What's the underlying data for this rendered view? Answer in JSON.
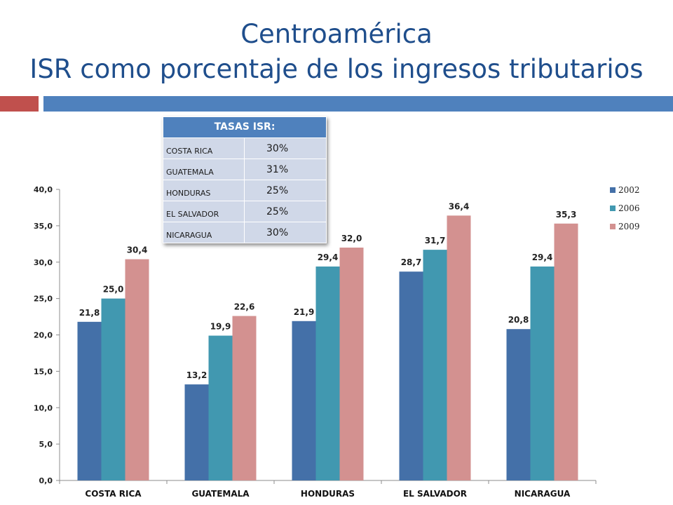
{
  "slide": {
    "title_line1": "Centroamérica",
    "title_line2": "ISR como porcentaje de los ingresos tributarios"
  },
  "rates_table": {
    "header": "TASAS ISR:",
    "rows": [
      {
        "country": "COSTA RICA",
        "rate": "30%"
      },
      {
        "country": "GUATEMALA",
        "rate": "31%"
      },
      {
        "country": "HONDURAS",
        "rate": "25%"
      },
      {
        "country": "EL SALVADOR",
        "rate": "25%"
      },
      {
        "country": "NICARAGUA",
        "rate": "30%"
      }
    ]
  },
  "colors": {
    "title": "#1f4e8c",
    "accent_red": "#c0504d",
    "accent_blue": "#4f81bd",
    "table_header": "#4f81bd",
    "table_cell": "#d0d8e8"
  },
  "chart_data": {
    "type": "bar",
    "title": "",
    "xlabel": "",
    "ylabel": "",
    "categories": [
      "COSTA RICA",
      "GUATEMALA",
      "HONDURAS",
      "EL SALVADOR",
      "NICARAGUA"
    ],
    "series": [
      {
        "name": "2002",
        "color": "#4470a8",
        "values": [
          21.8,
          13.2,
          21.9,
          28.7,
          20.8
        ],
        "labels": [
          "21,8",
          "13,2",
          "21,9",
          "28,7",
          "20,8"
        ]
      },
      {
        "name": "2006",
        "color": "#4198b0",
        "values": [
          25.0,
          19.9,
          29.4,
          31.7,
          29.4
        ],
        "labels": [
          "25,0",
          "19,9",
          "29,4",
          "31,7",
          "29,4"
        ]
      },
      {
        "name": "2009",
        "color": "#d39190",
        "values": [
          30.4,
          22.6,
          32.0,
          36.4,
          35.3
        ],
        "labels": [
          "30,4",
          "22,6",
          "32,0",
          "36,4",
          "35,3"
        ]
      }
    ],
    "ylim": [
      0,
      40
    ],
    "yticks": [
      0,
      5,
      10,
      15,
      20,
      25,
      30,
      35,
      40
    ],
    "ytick_labels": [
      "0,0",
      "5,0",
      "10,0",
      "15,0",
      "20,0",
      "25,0",
      "30,0",
      "35,0",
      "40,0"
    ],
    "grid": false,
    "legend": "right"
  }
}
